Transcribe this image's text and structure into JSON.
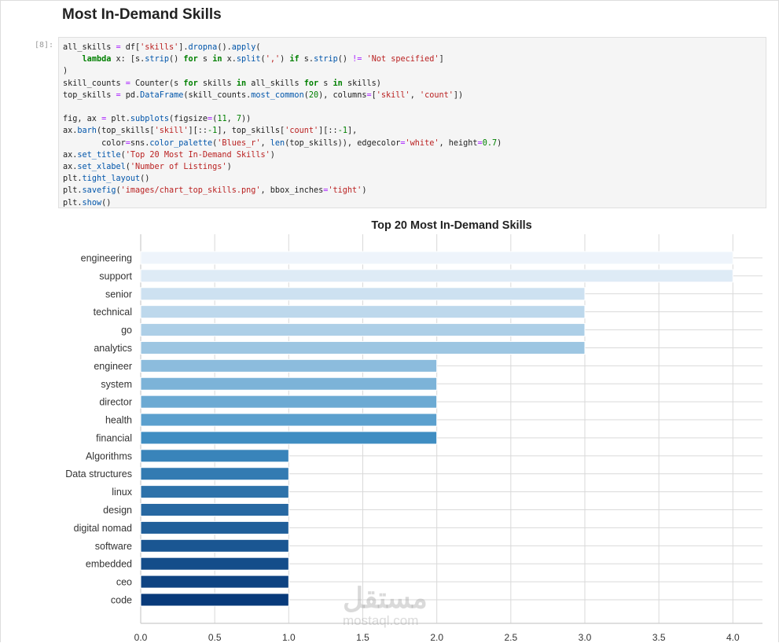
{
  "section_title": "Most In-Demand Skills",
  "cell_prompt": "[8]:",
  "code_lines": [
    [
      [
        "all_skills ",
        ""
      ],
      [
        "=",
        "op"
      ],
      [
        " df[",
        ""
      ],
      [
        "'skills'",
        "st"
      ],
      [
        "].",
        ""
      ],
      [
        "dropna",
        "fn"
      ],
      [
        "().",
        ""
      ],
      [
        "apply",
        "fn"
      ],
      [
        "(",
        ""
      ]
    ],
    [
      [
        "    ",
        ""
      ],
      [
        "lambda",
        "kw"
      ],
      [
        " x: [s.",
        ""
      ],
      [
        "strip",
        "fn"
      ],
      [
        "() ",
        ""
      ],
      [
        "for",
        "kw"
      ],
      [
        " s ",
        ""
      ],
      [
        "in",
        "kw"
      ],
      [
        " x.",
        ""
      ],
      [
        "split",
        "fn"
      ],
      [
        "(",
        ""
      ],
      [
        "','",
        "st"
      ],
      [
        ") ",
        ""
      ],
      [
        "if",
        "kw"
      ],
      [
        " s.",
        ""
      ],
      [
        "strip",
        "fn"
      ],
      [
        "() ",
        ""
      ],
      [
        "!=",
        "op"
      ],
      [
        " ",
        ""
      ],
      [
        "'Not specified'",
        "st"
      ],
      [
        "]",
        ""
      ]
    ],
    [
      [
        ")",
        ""
      ]
    ],
    [
      [
        "skill_counts ",
        ""
      ],
      [
        "=",
        "op"
      ],
      [
        " Counter(s ",
        ""
      ],
      [
        "for",
        "kw"
      ],
      [
        " skills ",
        ""
      ],
      [
        "in",
        "kw"
      ],
      [
        " all_skills ",
        ""
      ],
      [
        "for",
        "kw"
      ],
      [
        " s ",
        ""
      ],
      [
        "in",
        "kw"
      ],
      [
        " skills)",
        ""
      ]
    ],
    [
      [
        "top_skills ",
        ""
      ],
      [
        "=",
        "op"
      ],
      [
        " pd.",
        ""
      ],
      [
        "DataFrame",
        "fn"
      ],
      [
        "(skill_counts.",
        ""
      ],
      [
        "most_common",
        "fn"
      ],
      [
        "(",
        ""
      ],
      [
        "20",
        "nu"
      ],
      [
        "), columns",
        ""
      ],
      [
        "=",
        "op"
      ],
      [
        "[",
        ""
      ],
      [
        "'skill'",
        "st"
      ],
      [
        ", ",
        ""
      ],
      [
        "'count'",
        "st"
      ],
      [
        "])",
        ""
      ]
    ],
    [
      [
        "",
        ""
      ]
    ],
    [
      [
        "fig, ax ",
        ""
      ],
      [
        "=",
        "op"
      ],
      [
        " plt.",
        ""
      ],
      [
        "subplots",
        "fn"
      ],
      [
        "(figsize",
        ""
      ],
      [
        "=",
        "op"
      ],
      [
        "(",
        ""
      ],
      [
        "11",
        "nu"
      ],
      [
        ", ",
        ""
      ],
      [
        "7",
        "nu"
      ],
      [
        "))",
        ""
      ]
    ],
    [
      [
        "ax.",
        ""
      ],
      [
        "barh",
        "fn"
      ],
      [
        "(top_skills[",
        ""
      ],
      [
        "'skill'",
        "st"
      ],
      [
        "][::",
        ""
      ],
      [
        "-1",
        "nu"
      ],
      [
        "], top_skills[",
        ""
      ],
      [
        "'count'",
        "st"
      ],
      [
        "][::",
        ""
      ],
      [
        "-1",
        "nu"
      ],
      [
        "],",
        ""
      ]
    ],
    [
      [
        "        color",
        ""
      ],
      [
        "=",
        "op"
      ],
      [
        "sns.",
        ""
      ],
      [
        "color_palette",
        "fn"
      ],
      [
        "(",
        ""
      ],
      [
        "'Blues_r'",
        "st"
      ],
      [
        ", ",
        ""
      ],
      [
        "len",
        "fn"
      ],
      [
        "(top_skills)), edgecolor",
        ""
      ],
      [
        "=",
        "op"
      ],
      [
        "'white'",
        "st"
      ],
      [
        ", height",
        ""
      ],
      [
        "=",
        "op"
      ],
      [
        "0.7",
        "nu"
      ],
      [
        ")",
        ""
      ]
    ],
    [
      [
        "ax.",
        ""
      ],
      [
        "set_title",
        "fn"
      ],
      [
        "(",
        ""
      ],
      [
        "'Top 20 Most In-Demand Skills'",
        "st"
      ],
      [
        ")",
        ""
      ]
    ],
    [
      [
        "ax.",
        ""
      ],
      [
        "set_xlabel",
        "fn"
      ],
      [
        "(",
        ""
      ],
      [
        "'Number of Listings'",
        "st"
      ],
      [
        ")",
        ""
      ]
    ],
    [
      [
        "plt.",
        ""
      ],
      [
        "tight_layout",
        "fn"
      ],
      [
        "()",
        ""
      ]
    ],
    [
      [
        "plt.",
        ""
      ],
      [
        "savefig",
        "fn"
      ],
      [
        "(",
        ""
      ],
      [
        "'images/chart_top_skills.png'",
        "st"
      ],
      [
        ", bbox_inches",
        ""
      ],
      [
        "=",
        "op"
      ],
      [
        "'tight'",
        "st"
      ],
      [
        ")",
        ""
      ]
    ],
    [
      [
        "plt.",
        ""
      ],
      [
        "show",
        "fn"
      ],
      [
        "()",
        ""
      ]
    ]
  ],
  "watermark": {
    "arabic": "مستقل",
    "latin": "mostaql.com"
  },
  "chart_data": {
    "type": "bar",
    "orientation": "horizontal",
    "title": "Top 20 Most In-Demand Skills",
    "xlabel": "Number of Listings",
    "categories": [
      "engineering",
      "support",
      "senior",
      "technical",
      "go",
      "analytics",
      "engineer",
      "system",
      "director",
      "health",
      "financial",
      "Algorithms",
      "Data structures",
      "linux",
      "design",
      "digital nomad",
      "software",
      "embedded",
      "ceo",
      "code"
    ],
    "values": [
      4,
      4,
      3,
      3,
      3,
      3,
      2,
      2,
      2,
      2,
      2,
      1,
      1,
      1,
      1,
      1,
      1,
      1,
      1,
      1
    ],
    "xlim": [
      0,
      4.2
    ],
    "xticks": [
      "0.0",
      "0.5",
      "1.0",
      "1.5",
      "2.0",
      "2.5",
      "3.0",
      "3.5",
      "4.0"
    ],
    "grid": true,
    "palette": {
      "lightest": "#eef4fb",
      "darkest": "#083a7a"
    }
  }
}
